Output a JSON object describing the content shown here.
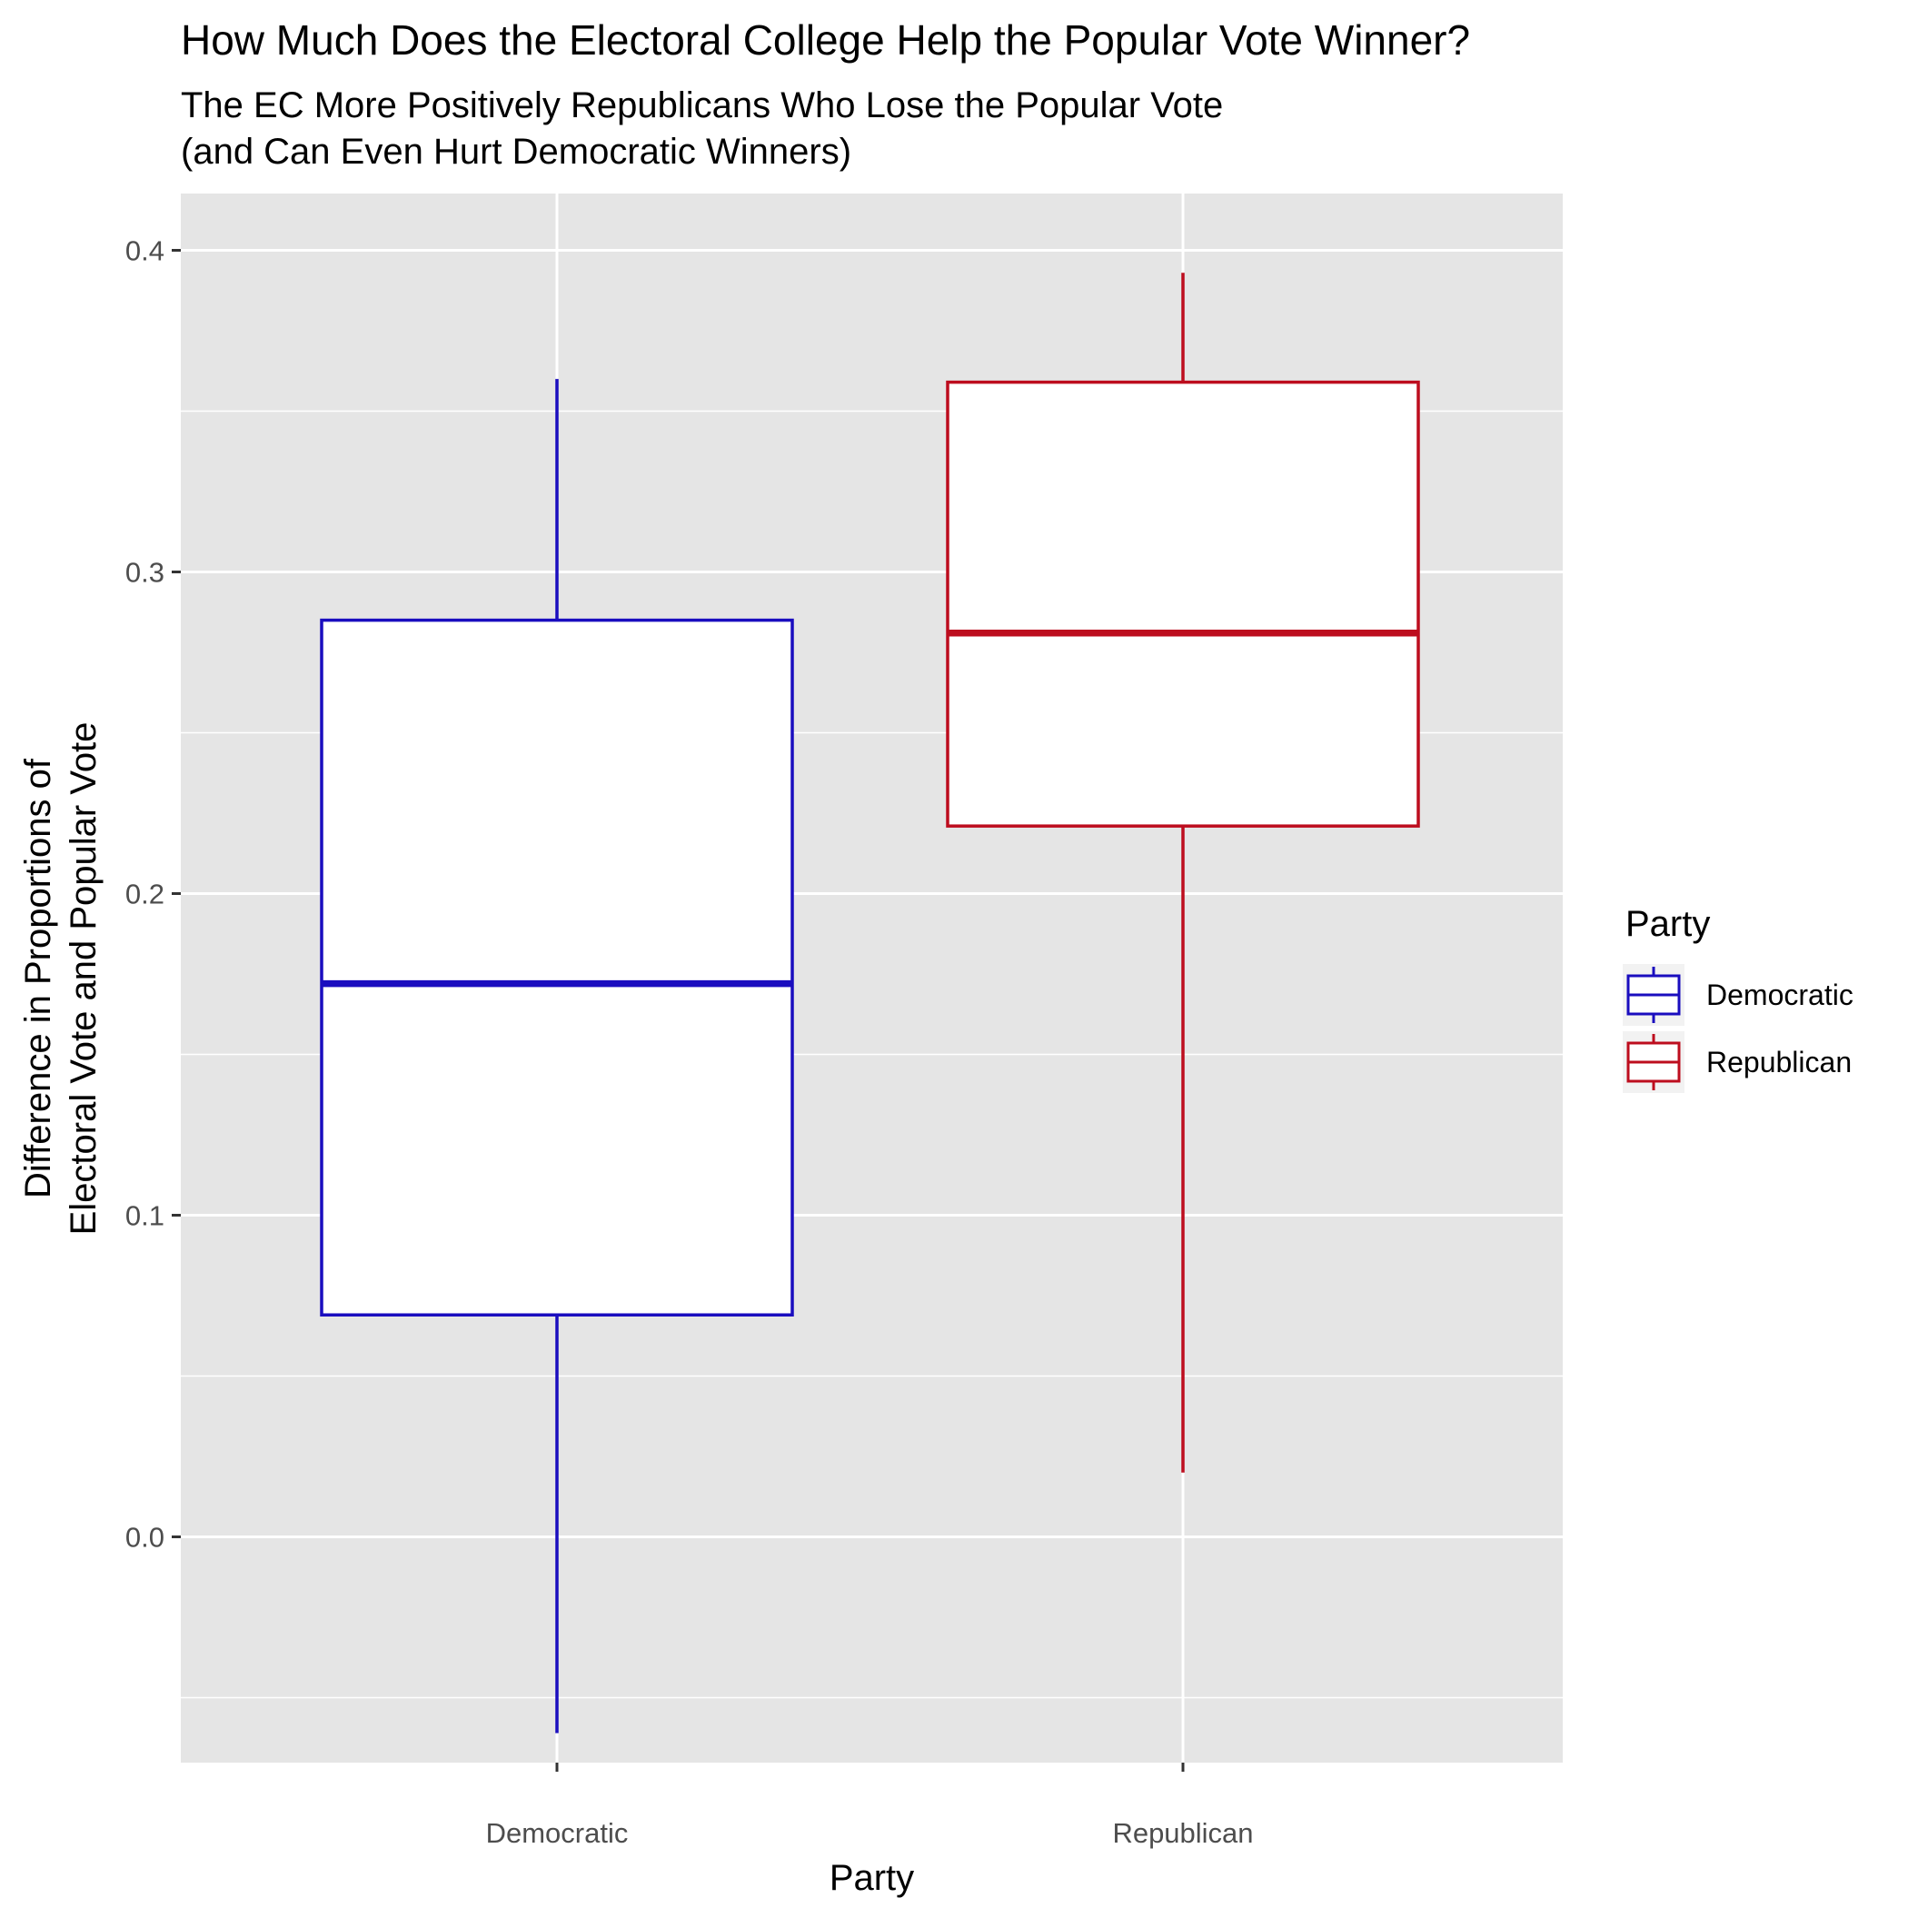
{
  "chart_data": {
    "type": "boxplot",
    "title": "How Much Does the Electoral College Help the Popular Vote Winner?",
    "subtitle_lines": [
      "The EC More Positively Republicans Who Lose the Popular Vote",
      "(and Can Even Hurt Democratic Winners)"
    ],
    "xlabel": "Party",
    "ylabel_lines": [
      "Difference in Proportions of",
      "Electoral Vote and Popular Vote"
    ],
    "categories": [
      "Democratic",
      "Republican"
    ],
    "y_ticks": [
      0.0,
      0.1,
      0.2,
      0.3,
      0.4
    ],
    "y_tick_labels": [
      "0.0",
      "0.1",
      "0.2",
      "0.3",
      "0.4"
    ],
    "ylim": [
      -0.07,
      0.415
    ],
    "grid": true,
    "series": [
      {
        "name": "Democratic",
        "color": "#1a0dbf",
        "min": -0.061,
        "q1": 0.069,
        "median": 0.172,
        "q3": 0.285,
        "max": 0.36
      },
      {
        "name": "Republican",
        "color": "#bd0d1e",
        "min": 0.02,
        "q1": 0.221,
        "median": 0.281,
        "q3": 0.359,
        "max": 0.393
      }
    ],
    "legend": {
      "title": "Party",
      "position": "right",
      "entries": [
        "Democratic",
        "Republican"
      ]
    }
  }
}
